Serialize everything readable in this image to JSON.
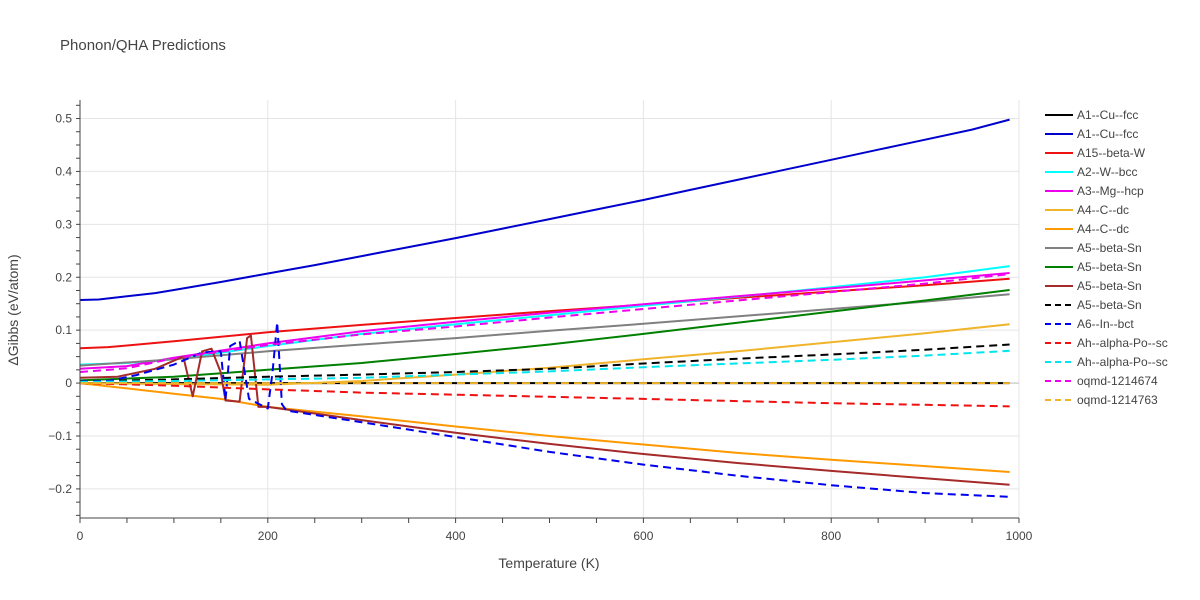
{
  "chart_data": {
    "type": "line",
    "title": "Phonon/QHA Predictions",
    "xlabel": "Temperature (K)",
    "ylabel": "ΔGibbs (eV/atom)",
    "xlim": [
      0,
      1000
    ],
    "ylim": [
      -0.255,
      0.535
    ],
    "x_ticks": [
      0,
      200,
      400,
      600,
      800,
      1000
    ],
    "x_tick_labels": [
      "0",
      "200",
      "400",
      "600",
      "800",
      "1000"
    ],
    "y_ticks": [
      -0.2,
      -0.1,
      0,
      0.1,
      0.2,
      0.3,
      0.4,
      0.5
    ],
    "y_tick_labels": [
      "−0.2",
      "−0.1",
      "0",
      "0.1",
      "0.2",
      "0.3",
      "0.4",
      "0.5"
    ],
    "grid": true,
    "legend_position": "right",
    "series": [
      {
        "name": "A1--Cu--fcc",
        "color": "#000000",
        "dash": "solid",
        "points": [
          [
            0,
            0
          ],
          [
            100,
            0
          ],
          [
            200,
            0
          ],
          [
            300,
            0
          ],
          [
            400,
            0
          ],
          [
            500,
            0
          ],
          [
            600,
            0
          ],
          [
            700,
            0
          ],
          [
            800,
            0
          ],
          [
            900,
            0
          ],
          [
            990,
            0
          ]
        ]
      },
      {
        "name": "A1--Cu--fcc",
        "color": "#0000cd",
        "dash": "solid",
        "points": [
          [
            0,
            0.157
          ],
          [
            20,
            0.158
          ],
          [
            50,
            0.164
          ],
          [
            80,
            0.17
          ],
          [
            100,
            0.176
          ],
          [
            150,
            0.191
          ],
          [
            200,
            0.207
          ],
          [
            250,
            0.223
          ],
          [
            300,
            0.24
          ],
          [
            350,
            0.257
          ],
          [
            400,
            0.274
          ],
          [
            450,
            0.292
          ],
          [
            500,
            0.31
          ],
          [
            550,
            0.328
          ],
          [
            600,
            0.346
          ],
          [
            650,
            0.365
          ],
          [
            700,
            0.384
          ],
          [
            750,
            0.403
          ],
          [
            800,
            0.422
          ],
          [
            850,
            0.441
          ],
          [
            900,
            0.46
          ],
          [
            950,
            0.479
          ],
          [
            990,
            0.498
          ]
        ]
      },
      {
        "name": "A15--beta-W",
        "color": "#ee1111",
        "dash": "solid",
        "points": [
          [
            0,
            0.066
          ],
          [
            30,
            0.068
          ],
          [
            50,
            0.071
          ],
          [
            100,
            0.079
          ],
          [
            200,
            0.096
          ],
          [
            300,
            0.11
          ],
          [
            400,
            0.123
          ],
          [
            500,
            0.136
          ],
          [
            600,
            0.148
          ],
          [
            700,
            0.161
          ],
          [
            800,
            0.173
          ],
          [
            900,
            0.185
          ],
          [
            990,
            0.197
          ]
        ]
      },
      {
        "name": "A2--W--bcc",
        "color": "#00ffff",
        "dash": "solid",
        "points": [
          [
            0,
            0.035
          ],
          [
            50,
            0.038
          ],
          [
            100,
            0.045
          ],
          [
            200,
            0.07
          ],
          [
            300,
            0.093
          ],
          [
            400,
            0.111
          ],
          [
            500,
            0.128
          ],
          [
            600,
            0.146
          ],
          [
            700,
            0.163
          ],
          [
            800,
            0.181
          ],
          [
            900,
            0.2
          ],
          [
            990,
            0.221
          ]
        ]
      },
      {
        "name": "A3--Mg--hcp",
        "color": "#ee00ee",
        "dash": "solid",
        "points": [
          [
            0,
            0.027
          ],
          [
            50,
            0.032
          ],
          [
            100,
            0.048
          ],
          [
            200,
            0.075
          ],
          [
            300,
            0.098
          ],
          [
            400,
            0.116
          ],
          [
            500,
            0.133
          ],
          [
            600,
            0.149
          ],
          [
            700,
            0.164
          ],
          [
            800,
            0.179
          ],
          [
            900,
            0.194
          ],
          [
            990,
            0.208
          ]
        ]
      },
      {
        "name": "A4--C--dc",
        "color": "#f0b42a",
        "dash": "solid",
        "points": [
          [
            0,
            0
          ],
          [
            100,
            -0.002
          ],
          [
            200,
            -0.003
          ],
          [
            300,
            0.004
          ],
          [
            400,
            0.016
          ],
          [
            500,
            0.029
          ],
          [
            600,
            0.045
          ],
          [
            700,
            0.06
          ],
          [
            800,
            0.077
          ],
          [
            900,
            0.094
          ],
          [
            990,
            0.111
          ]
        ]
      },
      {
        "name": "A4--C--dc",
        "color": "#ff9900",
        "dash": "solid",
        "points": [
          [
            0,
            0
          ],
          [
            100,
            -0.02
          ],
          [
            150,
            -0.03
          ],
          [
            200,
            -0.045
          ],
          [
            300,
            -0.063
          ],
          [
            400,
            -0.082
          ],
          [
            500,
            -0.1
          ],
          [
            600,
            -0.116
          ],
          [
            700,
            -0.132
          ],
          [
            800,
            -0.145
          ],
          [
            900,
            -0.157
          ],
          [
            990,
            -0.168
          ]
        ]
      },
      {
        "name": "A5--beta-Sn",
        "color": "#808080",
        "dash": "solid",
        "points": [
          [
            0,
            0.033
          ],
          [
            100,
            0.045
          ],
          [
            200,
            0.06
          ],
          [
            300,
            0.073
          ],
          [
            400,
            0.085
          ],
          [
            500,
            0.099
          ],
          [
            600,
            0.112
          ],
          [
            700,
            0.126
          ],
          [
            800,
            0.14
          ],
          [
            900,
            0.154
          ],
          [
            990,
            0.168
          ]
        ]
      },
      {
        "name": "A5--beta-Sn",
        "color": "#008000",
        "dash": "solid",
        "points": [
          [
            0,
            0.005
          ],
          [
            100,
            0.012
          ],
          [
            200,
            0.025
          ],
          [
            300,
            0.038
          ],
          [
            400,
            0.055
          ],
          [
            500,
            0.073
          ],
          [
            600,
            0.093
          ],
          [
            700,
            0.114
          ],
          [
            800,
            0.135
          ],
          [
            900,
            0.156
          ],
          [
            990,
            0.176
          ]
        ]
      },
      {
        "name": "A5--beta-Sn",
        "color": "#a52a2a",
        "dash": "solid",
        "points": [
          [
            0,
            0.01
          ],
          [
            40,
            0.012
          ],
          [
            80,
            0.027
          ],
          [
            110,
            0.05
          ],
          [
            120,
            -0.025
          ],
          [
            130,
            0.06
          ],
          [
            140,
            0.065
          ],
          [
            150,
            0.02
          ],
          [
            155,
            -0.033
          ],
          [
            170,
            -0.035
          ],
          [
            178,
            0.085
          ],
          [
            182,
            0.09
          ],
          [
            190,
            -0.045
          ],
          [
            200,
            -0.045
          ],
          [
            300,
            -0.07
          ],
          [
            400,
            -0.094
          ],
          [
            500,
            -0.115
          ],
          [
            600,
            -0.134
          ],
          [
            700,
            -0.151
          ],
          [
            800,
            -0.166
          ],
          [
            900,
            -0.18
          ],
          [
            990,
            -0.192
          ]
        ]
      },
      {
        "name": "A5--beta-Sn",
        "color": "#000000",
        "dash": "dash",
        "points": [
          [
            0,
            0.003
          ],
          [
            100,
            0.007
          ],
          [
            200,
            0.012
          ],
          [
            300,
            0.016
          ],
          [
            400,
            0.021
          ],
          [
            500,
            0.027
          ],
          [
            600,
            0.037
          ],
          [
            700,
            0.046
          ],
          [
            800,
            0.054
          ],
          [
            900,
            0.063
          ],
          [
            990,
            0.073
          ]
        ]
      },
      {
        "name": "A6--In--bct",
        "color": "#0000ee",
        "dash": "dash",
        "points": [
          [
            0,
            0.003
          ],
          [
            30,
            0.004
          ],
          [
            60,
            0.015
          ],
          [
            100,
            0.035
          ],
          [
            130,
            0.058
          ],
          [
            150,
            0.06
          ],
          [
            155,
            -0.032
          ],
          [
            160,
            0.07
          ],
          [
            170,
            0.08
          ],
          [
            180,
            -0.03
          ],
          [
            200,
            -0.048
          ],
          [
            205,
            0.02
          ],
          [
            210,
            0.115
          ],
          [
            215,
            -0.04
          ],
          [
            220,
            -0.052
          ],
          [
            300,
            -0.074
          ],
          [
            400,
            -0.102
          ],
          [
            500,
            -0.13
          ],
          [
            600,
            -0.154
          ],
          [
            700,
            -0.175
          ],
          [
            800,
            -0.193
          ],
          [
            900,
            -0.208
          ],
          [
            990,
            -0.215
          ]
        ]
      },
      {
        "name": "Ah--alpha-Po--sc",
        "color": "#ee1111",
        "dash": "dash",
        "points": [
          [
            0,
            0
          ],
          [
            100,
            -0.005
          ],
          [
            200,
            -0.012
          ],
          [
            300,
            -0.018
          ],
          [
            400,
            -0.022
          ],
          [
            500,
            -0.026
          ],
          [
            600,
            -0.03
          ],
          [
            700,
            -0.034
          ],
          [
            800,
            -0.038
          ],
          [
            900,
            -0.041
          ],
          [
            990,
            -0.044
          ]
        ]
      },
      {
        "name": "Ah--alpha-Po--sc",
        "color": "#00e5ee",
        "dash": "dash",
        "points": [
          [
            0,
            0.002
          ],
          [
            100,
            0.004
          ],
          [
            200,
            0.007
          ],
          [
            300,
            0.01
          ],
          [
            400,
            0.016
          ],
          [
            500,
            0.022
          ],
          [
            600,
            0.03
          ],
          [
            700,
            0.037
          ],
          [
            800,
            0.044
          ],
          [
            900,
            0.052
          ],
          [
            990,
            0.061
          ]
        ]
      },
      {
        "name": "oqmd-1214674",
        "color": "#ee00ee",
        "dash": "dash",
        "points": [
          [
            0,
            0.021
          ],
          [
            50,
            0.028
          ],
          [
            100,
            0.047
          ],
          [
            200,
            0.072
          ],
          [
            300,
            0.092
          ],
          [
            400,
            0.107
          ],
          [
            500,
            0.124
          ],
          [
            600,
            0.14
          ],
          [
            700,
            0.156
          ],
          [
            800,
            0.172
          ],
          [
            900,
            0.188
          ],
          [
            990,
            0.206
          ]
        ]
      },
      {
        "name": "oqmd-1214763",
        "color": "#f0b42a",
        "dash": "dash",
        "points": [
          [
            0,
            0
          ],
          [
            100,
            0
          ],
          [
            200,
            0
          ],
          [
            300,
            0
          ],
          [
            400,
            0
          ],
          [
            500,
            0
          ],
          [
            600,
            0
          ],
          [
            700,
            0
          ],
          [
            800,
            0
          ],
          [
            900,
            0
          ],
          [
            990,
            0
          ]
        ]
      }
    ]
  }
}
